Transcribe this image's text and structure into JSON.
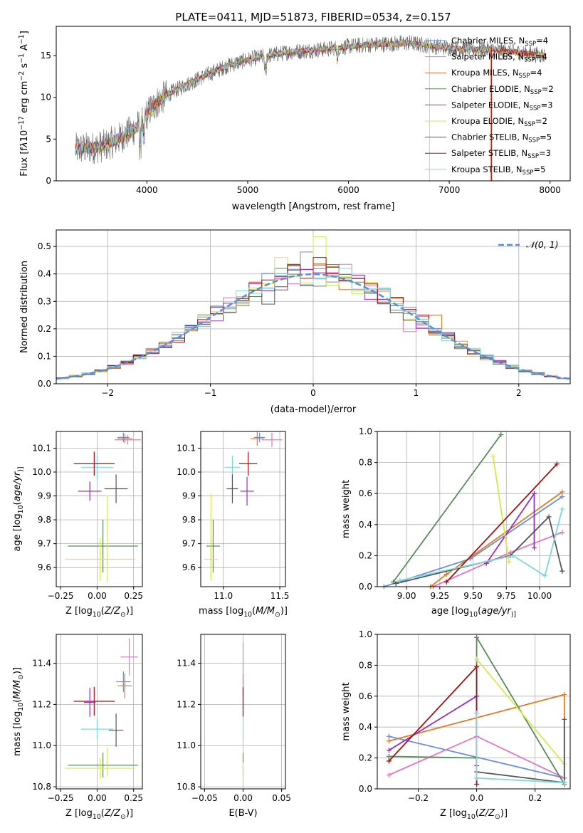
{
  "title": "PLATE=0411, MJD=51873, FIBERID=0534, z=0.157",
  "colors": {
    "Chabrier MILES": "#6a8fd8",
    "Salpeter MILES": "#e377c2",
    "Kroupa MILES": "#e07b27",
    "Chabrier ELODIE": "#5b8a5b",
    "Salpeter ELODIE": "#9b30b8",
    "Kroupa ELODIE": "#d5e84e",
    "Chabrier STELIB": "#555555",
    "Salpeter STELIB": "#a51212",
    "Kroupa STELIB": "#7fd7de",
    "grid": "#b0b0b0",
    "gaussian": "#5b8dd9"
  },
  "chart_data": [
    {
      "id": "spectrum",
      "type": "line",
      "title": "PLATE=0411, MJD=51873, FIBERID=0534, z=0.157",
      "xlabel": "wavelength [Angstrom, rest frame]",
      "ylabel_parts": [
        "Flux [f",
        "λ",
        "10",
        "−17",
        " erg cm",
        "−2",
        " s",
        "−1",
        " A",
        "−1",
        "]"
      ],
      "xlim": [
        3100,
        8200
      ],
      "ylim": [
        0,
        18.5
      ],
      "xticks": [
        "4000",
        "5000",
        "6000",
        "7000",
        "8000"
      ],
      "yticks": [
        "0",
        "5",
        "10",
        "15"
      ],
      "continuum_x": [
        3300,
        3400,
        3500,
        3600,
        3700,
        3800,
        3900,
        4000,
        4100,
        4200,
        4400,
        4600,
        4800,
        5000,
        5200,
        5400,
        5600,
        5800,
        6000,
        6200,
        6400,
        6600,
        6800,
        7000,
        7200,
        7400,
        7600,
        7800,
        7950
      ],
      "continuum_y": [
        3.8,
        3.9,
        4.0,
        4.3,
        4.9,
        5.6,
        6.4,
        8.0,
        9.4,
        10.3,
        11.6,
        12.7,
        13.8,
        14.5,
        15.0,
        15.4,
        15.6,
        15.8,
        16.1,
        16.3,
        16.4,
        16.5,
        16.2,
        15.9,
        15.8,
        15.7,
        15.5,
        15.2,
        15.0
      ],
      "legend": [
        {
          "name": "Chabrier MILES",
          "label": "Chabrier MILES, N",
          "sub": "SSP",
          "n": "=4"
        },
        {
          "name": "Salpeter MILES",
          "label": "Salpeter MILES, N",
          "sub": "SSP",
          "n": "=4"
        },
        {
          "name": "Kroupa MILES",
          "label": "Kroupa MILES, N",
          "sub": "SSP",
          "n": "=4"
        },
        {
          "name": "Chabrier ELODIE",
          "label": "Chabrier ELODIE, N",
          "sub": "SSP",
          "n": "=2"
        },
        {
          "name": "Salpeter ELODIE",
          "label": "Salpeter ELODIE, N",
          "sub": "SSP",
          "n": "=3"
        },
        {
          "name": "Kroupa ELODIE",
          "label": "Kroupa ELODIE, N",
          "sub": "SSP",
          "n": "=2"
        },
        {
          "name": "Chabrier STELIB",
          "label": "Chabrier STELIB, N",
          "sub": "SSP",
          "n": "=5"
        },
        {
          "name": "Salpeter STELIB",
          "label": "Salpeter STELIB, N",
          "sub": "SSP",
          "n": "=3"
        },
        {
          "name": "Kroupa STELIB",
          "label": "Kroupa STELIB, N",
          "sub": "SSP",
          "n": "=5"
        }
      ]
    },
    {
      "id": "residuals",
      "type": "histogram",
      "xlabel": "(data-model)/error",
      "ylabel": "Normed distribution",
      "xlim": [
        -2.5,
        2.5
      ],
      "ylim": [
        0,
        0.56
      ],
      "xticks": [
        "−2",
        "−1",
        "0",
        "1",
        "2"
      ],
      "yticks": [
        "0.0",
        "0.1",
        "0.2",
        "0.3",
        "0.4",
        "0.5"
      ],
      "bin_width": 0.125,
      "legend": "𝒩(0, 1)",
      "outlier_bins": [
        {
          "series": "Kroupa ELODIE",
          "x": 0.06,
          "y": 0.535
        },
        {
          "series": "Chabrier MILES",
          "x": -0.06,
          "y": 0.48
        },
        {
          "series": "Salpeter MILES",
          "x": 0.31,
          "y": 0.435
        },
        {
          "series": "Salpeter MILES",
          "x": 0.94,
          "y": 0.19
        },
        {
          "series": "Kroupa MILES",
          "x": 1.19,
          "y": 0.25
        },
        {
          "series": "Kroupa ELODIE",
          "x": -0.31,
          "y": 0.46
        },
        {
          "series": "Salpeter STELIB",
          "x": 0.06,
          "y": 0.46
        },
        {
          "series": "Chabrier STELIB",
          "x": -0.44,
          "y": 0.29
        }
      ]
    },
    {
      "id": "age-vs-Z",
      "type": "errorbar",
      "xlabel_parts": [
        "Z [log",
        "10",
        "(",
        "Z/Z",
        "⊙",
        ")]"
      ],
      "ylabel_parts": [
        "age  [log",
        "10",
        "(",
        "age/yr",
        ")]"
      ],
      "xlim": [
        -0.28,
        0.31
      ],
      "ylim": [
        9.52,
        10.17
      ],
      "xticks": [
        {
          "v": -0.25,
          "t": "−0.25"
        },
        {
          "v": 0.0,
          "t": "0.00"
        },
        {
          "v": 0.25,
          "t": "0.25"
        }
      ],
      "yticks": [
        {
          "v": 9.6,
          "t": "9.6"
        },
        {
          "v": 9.7,
          "t": "9.7"
        },
        {
          "v": 9.8,
          "t": "9.8"
        },
        {
          "v": 9.9,
          "t": "9.9"
        },
        {
          "v": 10.0,
          "t": "10.0"
        },
        {
          "v": 10.1,
          "t": "10.1"
        }
      ],
      "points": [
        {
          "series": "Salpeter MILES",
          "x": 0.21,
          "xerr": 0.09,
          "y": 10.135,
          "yerr": 0.02
        },
        {
          "series": "Kroupa MILES",
          "x": 0.19,
          "xerr": 0.05,
          "y": 10.14,
          "yerr": 0.02
        },
        {
          "series": "Chabrier MILES",
          "x": 0.18,
          "xerr": 0.04,
          "y": 10.145,
          "yerr": 0.02
        },
        {
          "series": "Kroupa STELIB",
          "x": 0.0,
          "xerr": 0.11,
          "y": 10.02,
          "yerr": 0.05
        },
        {
          "series": "Salpeter STELIB",
          "x": -0.02,
          "xerr": 0.14,
          "y": 10.035,
          "yerr": 0.05
        },
        {
          "series": "Chabrier STELIB",
          "x": 0.13,
          "xerr": 0.08,
          "y": 9.93,
          "yerr": 0.06
        },
        {
          "series": "Salpeter ELODIE",
          "x": -0.05,
          "xerr": 0.08,
          "y": 9.92,
          "yerr": 0.04
        },
        {
          "series": "Chabrier ELODIE",
          "x": 0.04,
          "xerr": 0.24,
          "y": 9.69,
          "yerr": 0.11
        },
        {
          "series": "Kroupa ELODIE",
          "x": 0.02,
          "xerr": 0.24,
          "y": 9.635,
          "yerr": 0.09
        },
        {
          "series": "Kroupa ELODIE",
          "x": 0.07,
          "xerr": 0.0,
          "y": 9.72,
          "yerr": 0.18
        }
      ]
    },
    {
      "id": "age-vs-mass",
      "type": "errorbar",
      "xlabel_parts": [
        "mass [log",
        "10",
        "(",
        "M/M",
        "⊙",
        ")]"
      ],
      "xlim": [
        10.8,
        11.55
      ],
      "ylim": [
        9.52,
        10.17
      ],
      "xticks": [
        {
          "v": 11.0,
          "t": "11.0"
        },
        {
          "v": 11.5,
          "t": "11.5"
        }
      ],
      "yticks": [
        {
          "v": 9.6,
          "t": "9.6"
        },
        {
          "v": 9.7,
          "t": "9.7"
        },
        {
          "v": 9.8,
          "t": "9.8"
        },
        {
          "v": 9.9,
          "t": "9.9"
        },
        {
          "v": 10.0,
          "t": "10.0"
        },
        {
          "v": 10.1,
          "t": "10.1"
        }
      ],
      "points": [
        {
          "series": "Salpeter MILES",
          "x": 11.43,
          "xerr": 0.09,
          "y": 10.135,
          "yerr": 0.03
        },
        {
          "series": "Kroupa MILES",
          "x": 11.3,
          "xerr": 0.06,
          "y": 10.14,
          "yerr": 0.03
        },
        {
          "series": "Chabrier MILES",
          "x": 11.32,
          "xerr": 0.05,
          "y": 10.145,
          "yerr": 0.02
        },
        {
          "series": "Salpeter STELIB",
          "x": 11.22,
          "xerr": 0.08,
          "y": 10.035,
          "yerr": 0.05
        },
        {
          "series": "Kroupa STELIB",
          "x": 11.08,
          "xerr": 0.07,
          "y": 10.02,
          "yerr": 0.05
        },
        {
          "series": "Chabrier STELIB",
          "x": 11.08,
          "xerr": 0.05,
          "y": 9.93,
          "yerr": 0.06
        },
        {
          "series": "Salpeter ELODIE",
          "x": 11.21,
          "xerr": 0.06,
          "y": 9.92,
          "yerr": 0.06
        },
        {
          "series": "Chabrier ELODIE",
          "x": 10.91,
          "xerr": 0.06,
          "y": 9.69,
          "yerr": 0.11
        },
        {
          "series": "Kroupa ELODIE",
          "x": 10.89,
          "xerr": 0.06,
          "y": 9.635,
          "yerr": 0.09
        },
        {
          "series": "Kroupa ELODIE",
          "x": 10.89,
          "xerr": 0.0,
          "y": 9.75,
          "yerr": 0.16
        }
      ]
    },
    {
      "id": "weights-vs-age",
      "type": "line",
      "xlabel_parts": [
        "age  [log",
        "10",
        "(",
        "age/yr",
        ")]"
      ],
      "ylabel": "mass weight",
      "xlim": [
        8.78,
        10.23
      ],
      "ylim": [
        0,
        1.0
      ],
      "xticks": [
        {
          "v": 9.0,
          "t": "9.00"
        },
        {
          "v": 9.25,
          "t": "9.25"
        },
        {
          "v": 9.5,
          "t": "9.50"
        },
        {
          "v": 9.75,
          "t": "9.75"
        },
        {
          "v": 10.0,
          "t": "10.00"
        }
      ],
      "yticks": [
        {
          "v": 0,
          "t": "0.0"
        },
        {
          "v": 0.2,
          "t": "0.2"
        },
        {
          "v": 0.4,
          "t": "0.4"
        },
        {
          "v": 0.6,
          "t": "0.6"
        },
        {
          "v": 0.8,
          "t": "0.8"
        },
        {
          "v": 1.0,
          "t": "1.0"
        }
      ],
      "series": [
        {
          "name": "Chabrier MILES",
          "x": [
            8.83,
            9.48,
            10.17
          ],
          "y": [
            0.0,
            0.18,
            0.58
          ]
        },
        {
          "name": "Salpeter MILES",
          "x": [
            9.2,
            9.78,
            10.17
          ],
          "y": [
            0.0,
            0.22,
            0.35
          ]
        },
        {
          "name": "Kroupa MILES",
          "x": [
            9.18,
            9.3,
            10.17
          ],
          "y": [
            0.0,
            0.08,
            0.61
          ]
        },
        {
          "name": "Chabrier ELODIE",
          "x": [
            8.9,
            9.71
          ],
          "y": [
            0.03,
            0.98
          ]
        },
        {
          "name": "Salpeter ELODIE",
          "x": [
            9.6,
            9.96,
            9.96
          ],
          "y": [
            0.15,
            0.6,
            0.25
          ]
        },
        {
          "name": "Kroupa ELODIE",
          "x": [
            9.65,
            9.77
          ],
          "y": [
            0.84,
            0.16
          ]
        },
        {
          "name": "Chabrier STELIB",
          "x": [
            8.92,
            9.78,
            10.07,
            10.17
          ],
          "y": [
            0.02,
            0.2,
            0.45,
            0.1
          ]
        },
        {
          "name": "Salpeter STELIB",
          "x": [
            9.3,
            10.13
          ],
          "y": [
            0.03,
            0.79
          ]
        },
        {
          "name": "Kroupa STELIB",
          "x": [
            8.95,
            9.8,
            10.04,
            10.17
          ],
          "y": [
            0.04,
            0.2,
            0.07,
            0.5
          ]
        }
      ]
    },
    {
      "id": "mass-vs-Z",
      "type": "errorbar",
      "xlabel_parts": [
        "Z [log",
        "10",
        "(",
        "Z/Z",
        "⊙",
        ")]"
      ],
      "ylabel_parts": [
        "mass [log",
        "10",
        "(",
        "M/M",
        "⊙",
        ")]"
      ],
      "xlim": [
        -0.28,
        0.31
      ],
      "ylim": [
        10.79,
        11.54
      ],
      "xticks": [
        {
          "v": -0.25,
          "t": "−0.25"
        },
        {
          "v": 0.0,
          "t": "0.00"
        },
        {
          "v": 0.25,
          "t": "0.25"
        }
      ],
      "yticks": [
        {
          "v": 10.8,
          "t": "10.8"
        },
        {
          "v": 11.0,
          "t": "11.0"
        },
        {
          "v": 11.2,
          "t": "11.2"
        },
        {
          "v": 11.4,
          "t": "11.4"
        }
      ],
      "points": [
        {
          "series": "Salpeter MILES",
          "x": 0.22,
          "xerr": 0.06,
          "y": 11.43,
          "yerr": 0.09
        },
        {
          "series": "Chabrier MILES",
          "x": 0.18,
          "xerr": 0.05,
          "y": 11.31,
          "yerr": 0.05
        },
        {
          "series": "Kroupa MILES",
          "x": 0.19,
          "xerr": 0.05,
          "y": 11.29,
          "yerr": 0.06
        },
        {
          "series": "Salpeter STELIB",
          "x": -0.02,
          "xerr": 0.14,
          "y": 11.215,
          "yerr": 0.07
        },
        {
          "series": "Salpeter ELODIE",
          "x": -0.05,
          "xerr": 0.04,
          "y": 11.21,
          "yerr": 0.07
        },
        {
          "series": "Kroupa STELIB",
          "x": 0.0,
          "xerr": 0.11,
          "y": 11.08,
          "yerr": 0.05
        },
        {
          "series": "Chabrier STELIB",
          "x": 0.13,
          "xerr": 0.05,
          "y": 11.075,
          "yerr": 0.08
        },
        {
          "series": "Chabrier ELODIE",
          "x": 0.04,
          "xerr": 0.24,
          "y": 10.905,
          "yerr": 0.06
        },
        {
          "series": "Kroupa ELODIE",
          "x": 0.02,
          "xerr": 0.24,
          "y": 10.89,
          "yerr": 0.05
        },
        {
          "series": "Kroupa ELODIE",
          "x": 0.07,
          "xerr": 0.0,
          "y": 10.92,
          "yerr": 0.07
        }
      ]
    },
    {
      "id": "mass-vs-EBV",
      "type": "errorbar",
      "xlabel": "E(B-V)",
      "xlim": [
        -0.055,
        0.055
      ],
      "ylim": [
        10.79,
        11.54
      ],
      "xticks": [
        {
          "v": -0.05,
          "t": "−0.05"
        },
        {
          "v": 0.0,
          "t": "0.00"
        },
        {
          "v": 0.05,
          "t": "0.05"
        }
      ],
      "yticks": [
        {
          "v": 10.8,
          "t": "10.8"
        },
        {
          "v": 11.0,
          "t": "11.0"
        },
        {
          "v": 11.2,
          "t": "11.2"
        },
        {
          "v": 11.4,
          "t": "11.4"
        }
      ],
      "points": [
        {
          "series": "Salpeter MILES",
          "x": 0.0,
          "xerr": 0.0,
          "y": 11.4,
          "yerr": 0.1
        },
        {
          "series": "Kroupa MILES",
          "x": 0.0,
          "xerr": 0.0,
          "y": 11.29,
          "yerr": 0.06
        },
        {
          "series": "Salpeter ELODIE",
          "x": 0.0,
          "xerr": 0.0,
          "y": 11.21,
          "yerr": 0.07
        },
        {
          "series": "Salpeter STELIB",
          "x": 0.0,
          "xerr": 0.0,
          "y": 11.215,
          "yerr": 0.07
        },
        {
          "series": "Kroupa STELIB",
          "x": 0.0,
          "xerr": 0.0,
          "y": 11.08,
          "yerr": 0.05
        },
        {
          "series": "Chabrier ELODIE",
          "x": 0.0,
          "xerr": 0.0,
          "y": 10.905,
          "yerr": 0.06
        },
        {
          "series": "Kroupa ELODIE",
          "x": 0.0,
          "xerr": 0.0,
          "y": 10.88,
          "yerr": 0.04
        }
      ]
    },
    {
      "id": "weights-vs-Z",
      "type": "line",
      "xlabel_parts": [
        "Z [log",
        "10",
        "(",
        "Z/Z",
        "⊙",
        ")]"
      ],
      "ylabel": "mass weight",
      "xlim": [
        -0.34,
        0.32
      ],
      "ylim": [
        0,
        1.0
      ],
      "xticks": [
        {
          "v": -0.2,
          "t": "−0.2"
        },
        {
          "v": 0.0,
          "t": "0.0"
        },
        {
          "v": 0.2,
          "t": "0.2"
        }
      ],
      "yticks": [
        {
          "v": 0,
          "t": "0.0"
        },
        {
          "v": 0.2,
          "t": "0.2"
        },
        {
          "v": 0.4,
          "t": "0.4"
        },
        {
          "v": 0.6,
          "t": "0.6"
        },
        {
          "v": 0.8,
          "t": "0.8"
        },
        {
          "v": 1.0,
          "t": "1.0"
        }
      ],
      "series": [
        {
          "name": "Chabrier MILES",
          "x": [
            -0.3,
            0.3
          ],
          "y": [
            0.34,
            0.07
          ]
        },
        {
          "name": "Salpeter MILES",
          "x": [
            -0.3,
            0.0,
            0.3
          ],
          "y": [
            0.09,
            0.34,
            0.07
          ]
        },
        {
          "name": "Kroupa MILES",
          "x": [
            -0.3,
            0.3,
            0.3
          ],
          "y": [
            0.31,
            0.61,
            0.04
          ]
        },
        {
          "name": "Chabrier ELODIE",
          "x": [
            -0.3,
            0.0,
            0.0,
            0.3
          ],
          "y": [
            0.21,
            0.2,
            0.98,
            0.03
          ]
        },
        {
          "name": "Salpeter ELODIE",
          "x": [
            -0.3,
            0.0,
            0.0
          ],
          "y": [
            0.25,
            0.6,
            0.15
          ]
        },
        {
          "name": "Kroupa ELODIE",
          "x": [
            0.0,
            0.3
          ],
          "y": [
            0.84,
            0.16
          ]
        },
        {
          "name": "Chabrier STELIB",
          "x": [
            0.0,
            0.3,
            0.3
          ],
          "y": [
            0.11,
            0.04,
            0.45
          ]
        },
        {
          "name": "Salpeter STELIB",
          "x": [
            -0.3,
            0.0,
            0.0
          ],
          "y": [
            0.18,
            0.79,
            0.03
          ]
        },
        {
          "name": "Kroupa STELIB",
          "x": [
            0.0,
            0.0,
            0.3,
            0.3
          ],
          "y": [
            0.49,
            0.07,
            0.04,
            0.04
          ]
        }
      ]
    }
  ]
}
